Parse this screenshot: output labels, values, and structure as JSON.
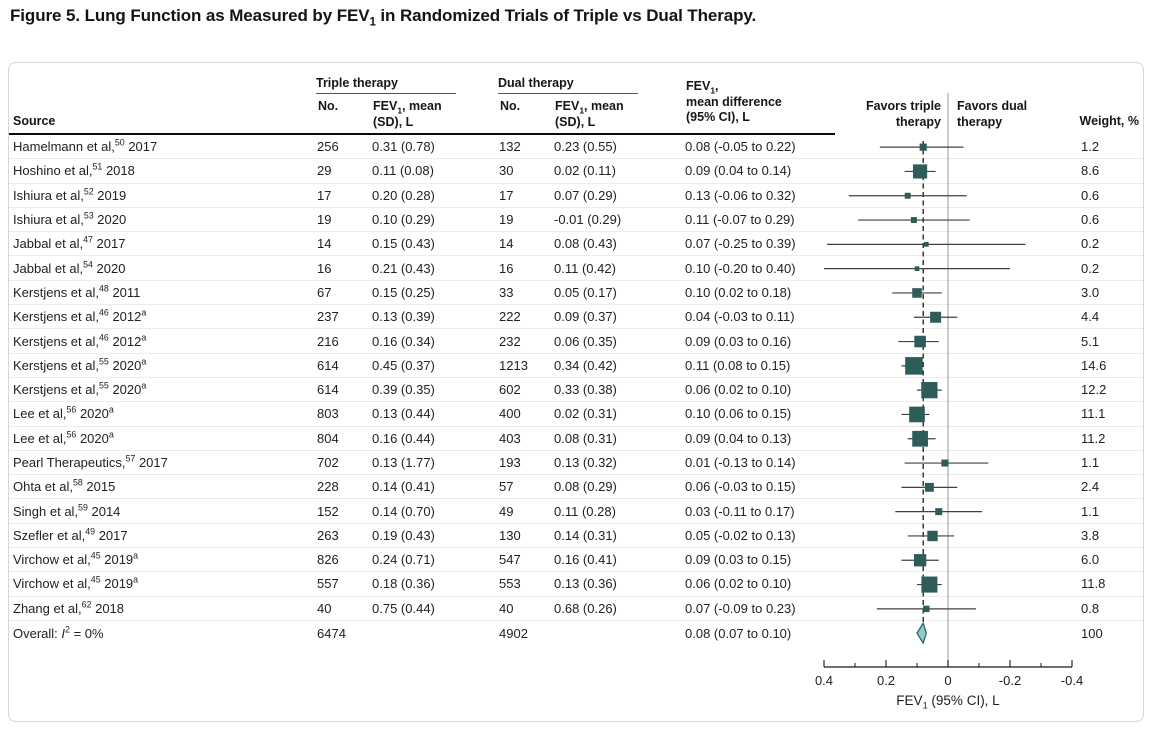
{
  "title": {
    "pre": "Figure 5. Lung Function as Measured by FEV",
    "sub": "1",
    "post": " in Randomized Trials of Triple vs Dual Therapy."
  },
  "table": {
    "source_header": "Source",
    "triple_group_header": "Triple therapy",
    "dual_group_header": "Dual therapy",
    "no_header": "No.",
    "fev_header_line1": {
      "pre": "FEV",
      "sub": "1",
      "post": ", mean"
    },
    "fev_header_line2": "(SD), L",
    "diff_header_line1": {
      "pre": "FEV",
      "sub": "1",
      "post": ","
    },
    "diff_header_line2": "mean difference",
    "diff_header_line3": "(95% CI), L",
    "favors_left_line1": "Favors triple",
    "favors_left_line2": "therapy",
    "favors_right_line1": "Favors dual",
    "favors_right_line2": "therapy",
    "weight_header": "Weight, %"
  },
  "colors": {
    "marker": "#2e5c59",
    "diamond_fill": "#8cccce",
    "ci_line": "#414141",
    "zero_line": "#a9a9a9",
    "dashed_line": "#1a1a1a",
    "axis": "#191919"
  },
  "chart_data": {
    "type": "forest",
    "x_axis": {
      "label": {
        "pre": "FEV",
        "sub": "1",
        "post": " (95% CI), L"
      },
      "ticks": [
        0.4,
        0.2,
        0,
        -0.2,
        -0.4
      ],
      "minor_ticks": [
        0.3,
        0.1,
        -0.1,
        -0.3
      ],
      "range": [
        0.4,
        -0.4
      ],
      "reversed": true,
      "zero_reference": 0
    },
    "favors_left": "Favors triple therapy",
    "favors_right": "Favors dual therapy",
    "studies": [
      {
        "name": "Hamelmann et al,",
        "ref": "50",
        "year": "2017",
        "year_sup": "",
        "triple_n": "256",
        "triple_fev": "0.31 (0.78)",
        "dual_n": "132",
        "dual_fev": "0.23 (0.55)",
        "diff": "0.08 (-0.05 to 0.22)",
        "weight_label": "1.2",
        "estimate": 0.08,
        "ci_low": -0.05,
        "ci_high": 0.22,
        "weight": 1.2
      },
      {
        "name": "Hoshino et al,",
        "ref": "51",
        "year": "2018",
        "year_sup": "",
        "triple_n": "29",
        "triple_fev": "0.11 (0.08)",
        "dual_n": "30",
        "dual_fev": "0.02 (0.11)",
        "diff": "0.09 (0.04 to 0.14)",
        "weight_label": "8.6",
        "estimate": 0.09,
        "ci_low": 0.04,
        "ci_high": 0.14,
        "weight": 8.6
      },
      {
        "name": "Ishiura et al,",
        "ref": "52",
        "year": "2019",
        "year_sup": "",
        "triple_n": "17",
        "triple_fev": "0.20 (0.28)",
        "dual_n": "17",
        "dual_fev": "0.07 (0.29)",
        "diff": "0.13 (-0.06 to 0.32)",
        "weight_label": "0.6",
        "estimate": 0.13,
        "ci_low": -0.06,
        "ci_high": 0.32,
        "weight": 0.6
      },
      {
        "name": "Ishiura et al,",
        "ref": "53",
        "year": "2020",
        "year_sup": "",
        "triple_n": "19",
        "triple_fev": "0.10 (0.29)",
        "dual_n": "19",
        "dual_fev": "-0.01 (0.29)",
        "diff": "0.11 (-0.07 to 0.29)",
        "weight_label": "0.6",
        "estimate": 0.11,
        "ci_low": -0.07,
        "ci_high": 0.29,
        "weight": 0.6
      },
      {
        "name": "Jabbal et al,",
        "ref": "47",
        "year": "2017",
        "year_sup": "",
        "triple_n": "14",
        "triple_fev": "0.15 (0.43)",
        "dual_n": "14",
        "dual_fev": "0.08 (0.43)",
        "diff": "0.07 (-0.25 to 0.39)",
        "weight_label": "0.2",
        "estimate": 0.07,
        "ci_low": -0.25,
        "ci_high": 0.39,
        "weight": 0.2
      },
      {
        "name": "Jabbal et al,",
        "ref": "54",
        "year": "2020",
        "year_sup": "",
        "triple_n": "16",
        "triple_fev": "0.21 (0.43)",
        "dual_n": "16",
        "dual_fev": "0.11 (0.42)",
        "diff": "0.10 (-0.20 to 0.40)",
        "weight_label": "0.2",
        "estimate": 0.1,
        "ci_low": -0.2,
        "ci_high": 0.4,
        "weight": 0.2
      },
      {
        "name": "Kerstjens et al,",
        "ref": "48",
        "year": "2011",
        "year_sup": "",
        "triple_n": "67",
        "triple_fev": "0.15 (0.25)",
        "dual_n": "33",
        "dual_fev": "0.05 (0.17)",
        "diff": "0.10 (0.02 to 0.18)",
        "weight_label": "3.0",
        "estimate": 0.1,
        "ci_low": 0.02,
        "ci_high": 0.18,
        "weight": 3.0
      },
      {
        "name": "Kerstjens et al,",
        "ref": "46",
        "year": "2012",
        "year_sup": "a",
        "triple_n": "237",
        "triple_fev": "0.13 (0.39)",
        "dual_n": "222",
        "dual_fev": "0.09 (0.37)",
        "diff": "0.04 (-0.03 to 0.11)",
        "weight_label": "4.4",
        "estimate": 0.04,
        "ci_low": -0.03,
        "ci_high": 0.11,
        "weight": 4.4
      },
      {
        "name": "Kerstjens et al,",
        "ref": "46",
        "year": "2012",
        "year_sup": "a",
        "triple_n": "216",
        "triple_fev": "0.16 (0.34)",
        "dual_n": "232",
        "dual_fev": "0.06 (0.35)",
        "diff": "0.09 (0.03 to 0.16)",
        "weight_label": "5.1",
        "estimate": 0.09,
        "ci_low": 0.03,
        "ci_high": 0.16,
        "weight": 5.1
      },
      {
        "name": "Kerstjens et al,",
        "ref": "55",
        "year": "2020",
        "year_sup": "a",
        "triple_n": "614",
        "triple_fev": "0.45 (0.37)",
        "dual_n": "1213",
        "dual_fev": "0.34 (0.42)",
        "diff": "0.11 (0.08 to 0.15)",
        "weight_label": "14.6",
        "estimate": 0.11,
        "ci_low": 0.08,
        "ci_high": 0.15,
        "weight": 14.6
      },
      {
        "name": "Kerstjens et al,",
        "ref": "55",
        "year": "2020",
        "year_sup": "a",
        "triple_n": "614",
        "triple_fev": "0.39 (0.35)",
        "dual_n": "602",
        "dual_fev": "0.33 (0.38)",
        "diff": "0.06 (0.02 to 0.10)",
        "weight_label": "12.2",
        "estimate": 0.06,
        "ci_low": 0.02,
        "ci_high": 0.1,
        "weight": 12.2
      },
      {
        "name": "Lee et al,",
        "ref": "56",
        "year": "2020",
        "year_sup": "a",
        "triple_n": "803",
        "triple_fev": "0.13 (0.44)",
        "dual_n": "400",
        "dual_fev": "0.02 (0.31)",
        "diff": "0.10 (0.06 to 0.15)",
        "weight_label": "11.1",
        "estimate": 0.1,
        "ci_low": 0.06,
        "ci_high": 0.15,
        "weight": 11.1
      },
      {
        "name": "Lee et al,",
        "ref": "56",
        "year": "2020",
        "year_sup": "a",
        "triple_n": "804",
        "triple_fev": "0.16 (0.44)",
        "dual_n": "403",
        "dual_fev": "0.08 (0.31)",
        "diff": "0.09 (0.04 to 0.13)",
        "weight_label": "11.2",
        "estimate": 0.09,
        "ci_low": 0.04,
        "ci_high": 0.13,
        "weight": 11.2
      },
      {
        "name": "Pearl Therapeutics,",
        "ref": "57",
        "year": "2017",
        "year_sup": "",
        "triple_n": "702",
        "triple_fev": "0.13 (1.77)",
        "dual_n": "193",
        "dual_fev": "0.13 (0.32)",
        "diff": "0.01 (-0.13 to 0.14)",
        "weight_label": "1.1",
        "estimate": 0.01,
        "ci_low": -0.13,
        "ci_high": 0.14,
        "weight": 1.1
      },
      {
        "name": "Ohta et al,",
        "ref": "58",
        "year": "2015",
        "year_sup": "",
        "triple_n": "228",
        "triple_fev": "0.14 (0.41)",
        "dual_n": "57",
        "dual_fev": "0.08 (0.29)",
        "diff": "0.06 (-0.03 to 0.15)",
        "weight_label": "2.4",
        "estimate": 0.06,
        "ci_low": -0.03,
        "ci_high": 0.15,
        "weight": 2.4
      },
      {
        "name": "Singh et al,",
        "ref": "59",
        "year": "2014",
        "year_sup": "",
        "triple_n": "152",
        "triple_fev": "0.14 (0.70)",
        "dual_n": "49",
        "dual_fev": "0.11 (0.28)",
        "diff": "0.03 (-0.11 to 0.17)",
        "weight_label": "1.1",
        "estimate": 0.03,
        "ci_low": -0.11,
        "ci_high": 0.17,
        "weight": 1.1
      },
      {
        "name": "Szefler et al,",
        "ref": "49",
        "year": "2017",
        "year_sup": "",
        "triple_n": "263",
        "triple_fev": "0.19 (0.43)",
        "dual_n": "130",
        "dual_fev": "0.14 (0.31)",
        "diff": "0.05 (-0.02 to 0.13)",
        "weight_label": "3.8",
        "estimate": 0.05,
        "ci_low": -0.02,
        "ci_high": 0.13,
        "weight": 3.8
      },
      {
        "name": "Virchow et al,",
        "ref": "45",
        "year": "2019",
        "year_sup": "a",
        "triple_n": "826",
        "triple_fev": "0.24 (0.71)",
        "dual_n": "547",
        "dual_fev": "0.16 (0.41)",
        "diff": "0.09 (0.03 to 0.15)",
        "weight_label": "6.0",
        "estimate": 0.09,
        "ci_low": 0.03,
        "ci_high": 0.15,
        "weight": 6.0
      },
      {
        "name": "Virchow et al,",
        "ref": "45",
        "year": "2019",
        "year_sup": "a",
        "triple_n": "557",
        "triple_fev": "0.18 (0.36)",
        "dual_n": "553",
        "dual_fev": "0.13 (0.36)",
        "diff": "0.06 (0.02 to 0.10)",
        "weight_label": "11.8",
        "estimate": 0.06,
        "ci_low": 0.02,
        "ci_high": 0.1,
        "weight": 11.8
      },
      {
        "name": "Zhang et al,",
        "ref": "62",
        "year": "2018",
        "year_sup": "",
        "triple_n": "40",
        "triple_fev": "0.75 (0.44)",
        "dual_n": "40",
        "dual_fev": "0.68 (0.26)",
        "diff": "0.07 (-0.09 to 0.23)",
        "weight_label": "0.8",
        "estimate": 0.07,
        "ci_low": -0.09,
        "ci_high": 0.23,
        "weight": 0.8
      }
    ],
    "overall": {
      "label_pre": "Overall: ",
      "label_italic": "I",
      "label_sup": "2",
      "label_post": " = 0%",
      "triple_n": "6474",
      "dual_n": "4902",
      "diff": "0.08 (0.07 to 0.10)",
      "weight_label": "100",
      "estimate": 0.08,
      "ci_low": 0.07,
      "ci_high": 0.1
    }
  }
}
